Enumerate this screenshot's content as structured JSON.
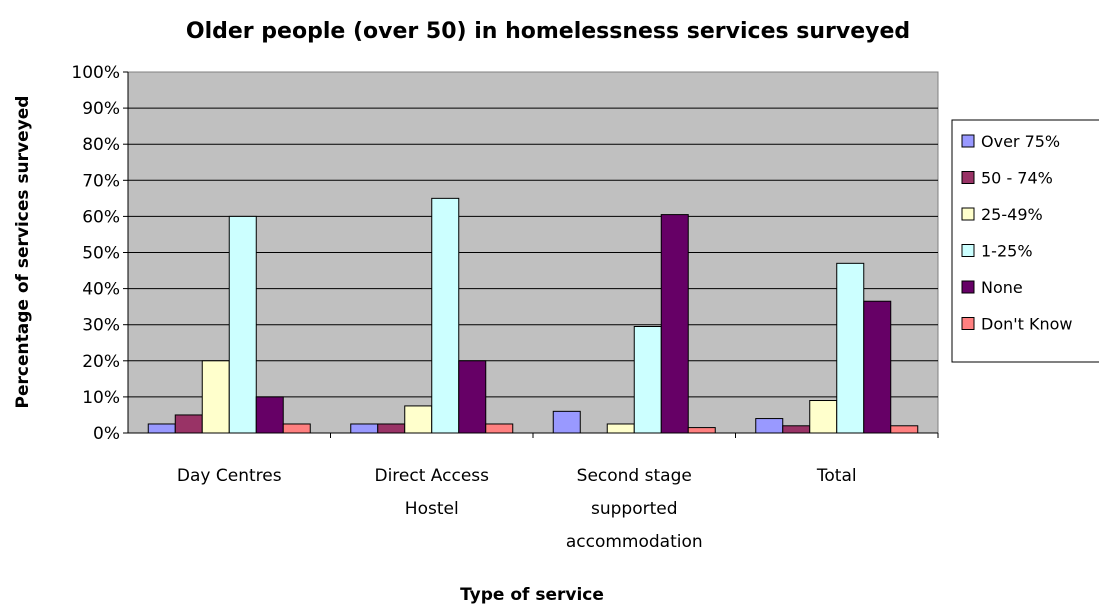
{
  "chart_data": {
    "type": "bar",
    "title": "Older people (over 50) in homelessness services surveyed",
    "xlabel": "Type of service",
    "ylabel": "Percentage of services surveyed",
    "ylim": [
      0,
      100
    ],
    "y_ticks": [
      "0%",
      "10%",
      "20%",
      "30%",
      "40%",
      "50%",
      "60%",
      "70%",
      "80%",
      "90%",
      "100%"
    ],
    "grid": true,
    "legend_position": "right",
    "plot_background": "#c0c0c0",
    "categories": [
      [
        "Day Centres"
      ],
      [
        "Direct Access",
        "Hostel"
      ],
      [
        "Second stage",
        "supported",
        "accommodation"
      ],
      [
        "Total"
      ]
    ],
    "series": [
      {
        "name": "Over 75%",
        "color": "#9999ff",
        "values": [
          2.5,
          2.5,
          6,
          4
        ]
      },
      {
        "name": "50 - 74%",
        "color": "#993366",
        "values": [
          5,
          2.5,
          0,
          2
        ]
      },
      {
        "name": "25-49%",
        "color": "#ffffcc",
        "values": [
          20,
          7.5,
          2.5,
          9
        ]
      },
      {
        "name": "1-25%",
        "color": "#ccffff",
        "values": [
          60,
          65,
          29.5,
          47
        ]
      },
      {
        "name": "None",
        "color": "#660066",
        "values": [
          10,
          20,
          60.5,
          36.5
        ]
      },
      {
        "name": "Don't Know",
        "color": "#ff8080",
        "values": [
          2.5,
          2.5,
          1.5,
          2
        ]
      }
    ]
  }
}
